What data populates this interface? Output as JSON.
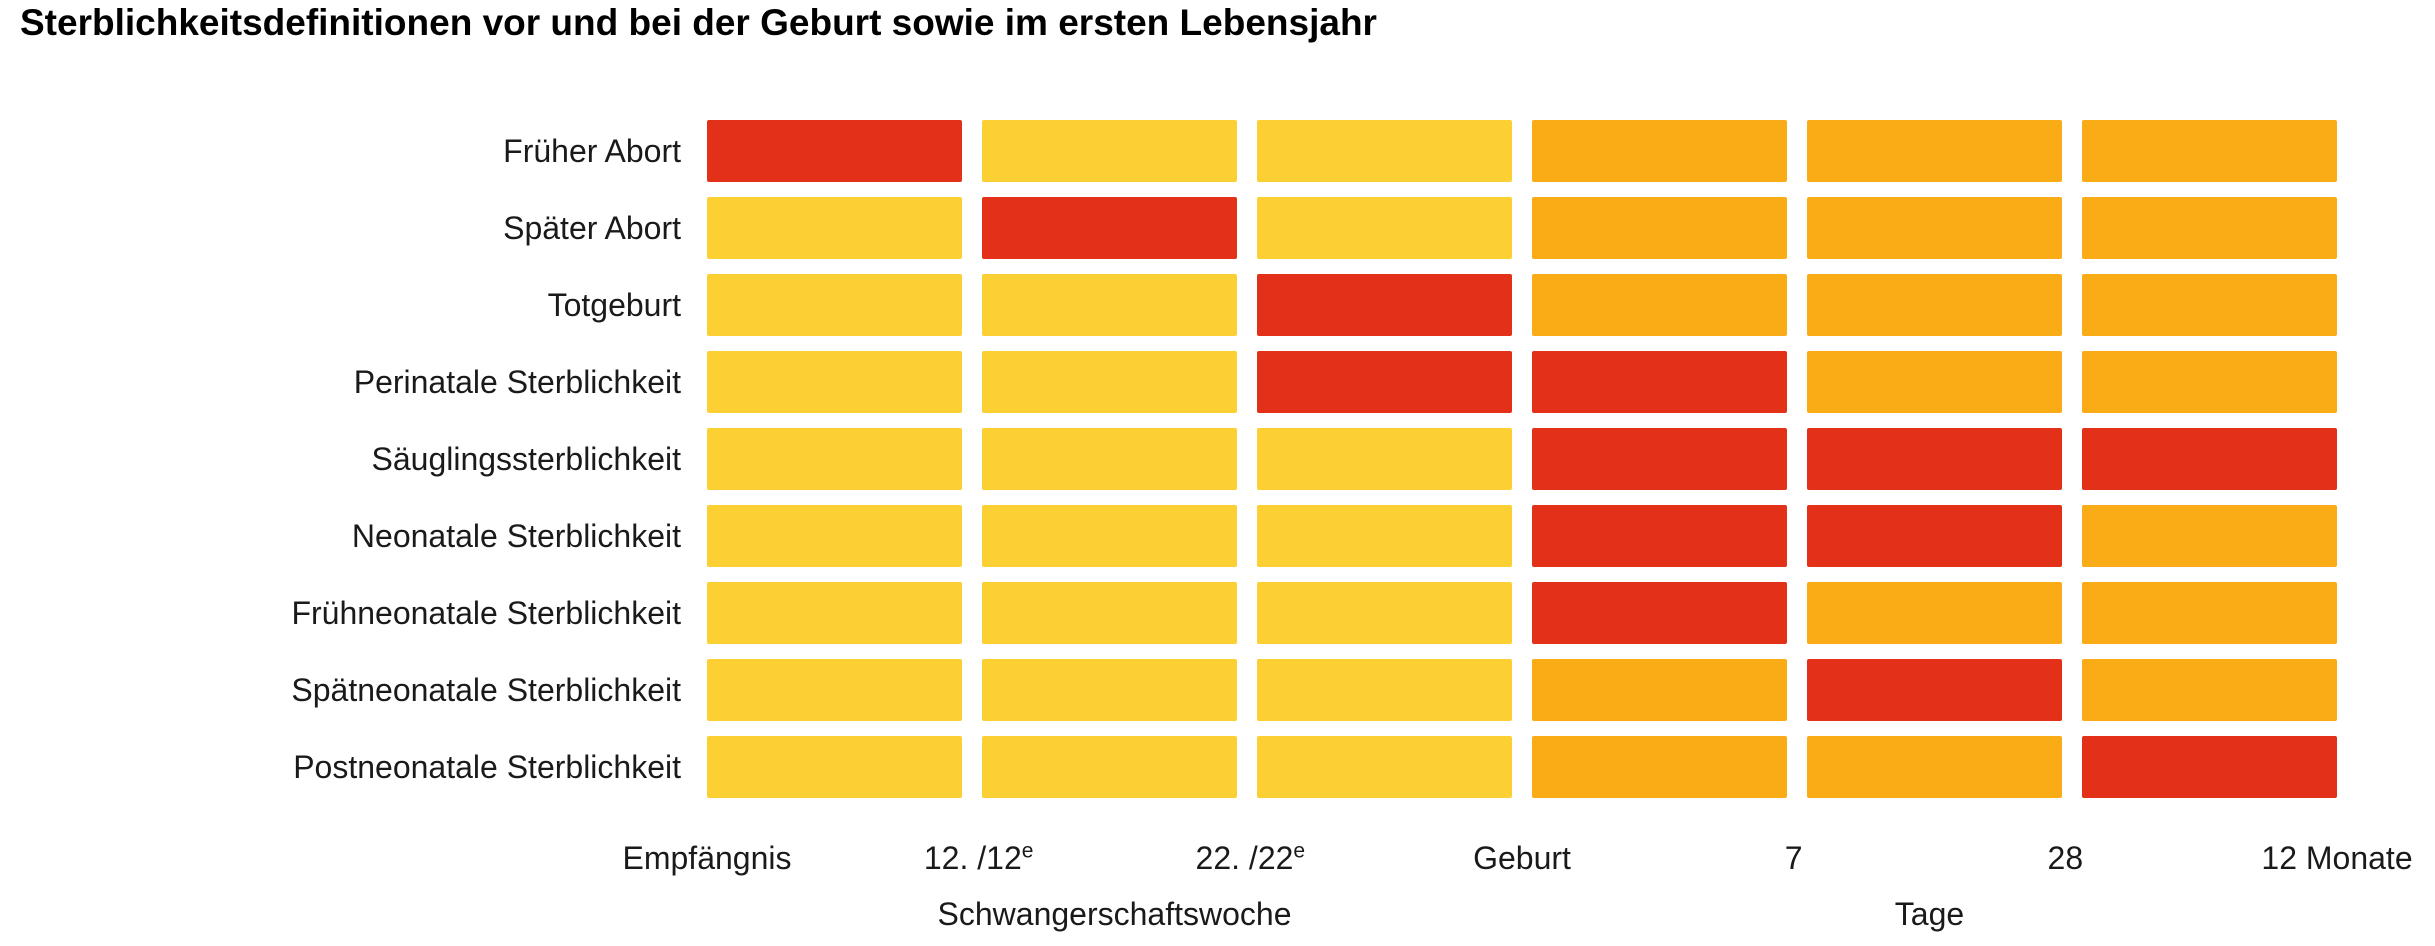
{
  "title": "Sterblichkeitsdefinitionen vor und bei der Geburt sowie im ersten Lebensjahr",
  "chart_data": {
    "type": "heatmap",
    "description": "Timeline grid: each row is a mortality definition; red cells mark the time span covered by that definition. Light yellow = before birth segments, orange = after birth segments.",
    "rows": [
      {
        "label": "Früher Abort",
        "cells": [
          "covered",
          "pre",
          "pre",
          "post",
          "post",
          "post"
        ]
      },
      {
        "label": "Später Abort",
        "cells": [
          "pre",
          "covered",
          "pre",
          "post",
          "post",
          "post"
        ]
      },
      {
        "label": "Totgeburt",
        "cells": [
          "pre",
          "pre",
          "covered",
          "post",
          "post",
          "post"
        ]
      },
      {
        "label": "Perinatale Sterblichkeit",
        "cells": [
          "pre",
          "pre",
          "covered",
          "covered",
          "post",
          "post"
        ]
      },
      {
        "label": "Säuglingssterblichkeit",
        "cells": [
          "pre",
          "pre",
          "pre",
          "covered",
          "covered",
          "covered"
        ]
      },
      {
        "label": "Neonatale Sterblichkeit",
        "cells": [
          "pre",
          "pre",
          "pre",
          "covered",
          "covered",
          "post"
        ]
      },
      {
        "label": "Frühneonatale Sterblichkeit",
        "cells": [
          "pre",
          "pre",
          "pre",
          "covered",
          "post",
          "post"
        ]
      },
      {
        "label": "Spätneonatale Sterblichkeit",
        "cells": [
          "pre",
          "pre",
          "pre",
          "post",
          "covered",
          "post"
        ]
      },
      {
        "label": "Postneonatale Sterblichkeit",
        "cells": [
          "pre",
          "pre",
          "pre",
          "post",
          "post",
          "covered"
        ]
      }
    ],
    "x_axis": {
      "boundary_labels": [
        {
          "text": "Empfängnis",
          "sup": ""
        },
        {
          "text": "12. /12",
          "sup": "e"
        },
        {
          "text": "22. /22",
          "sup": "e"
        },
        {
          "text": "Geburt",
          "sup": ""
        },
        {
          "text": "7",
          "sup": ""
        },
        {
          "text": "28",
          "sup": ""
        },
        {
          "text": "12 Monate",
          "sup": ""
        }
      ],
      "unit_labels": [
        {
          "text": "Schwangerschaftswoche",
          "position_pct": 25
        },
        {
          "text": "Tage",
          "position_pct": 75
        }
      ]
    },
    "colors": {
      "pre": "#FCD032",
      "post": "#FAAC16",
      "covered": "#E23118"
    },
    "layout": {
      "columns": 6,
      "grid": "on-cells-only",
      "legend_position": "none"
    }
  }
}
